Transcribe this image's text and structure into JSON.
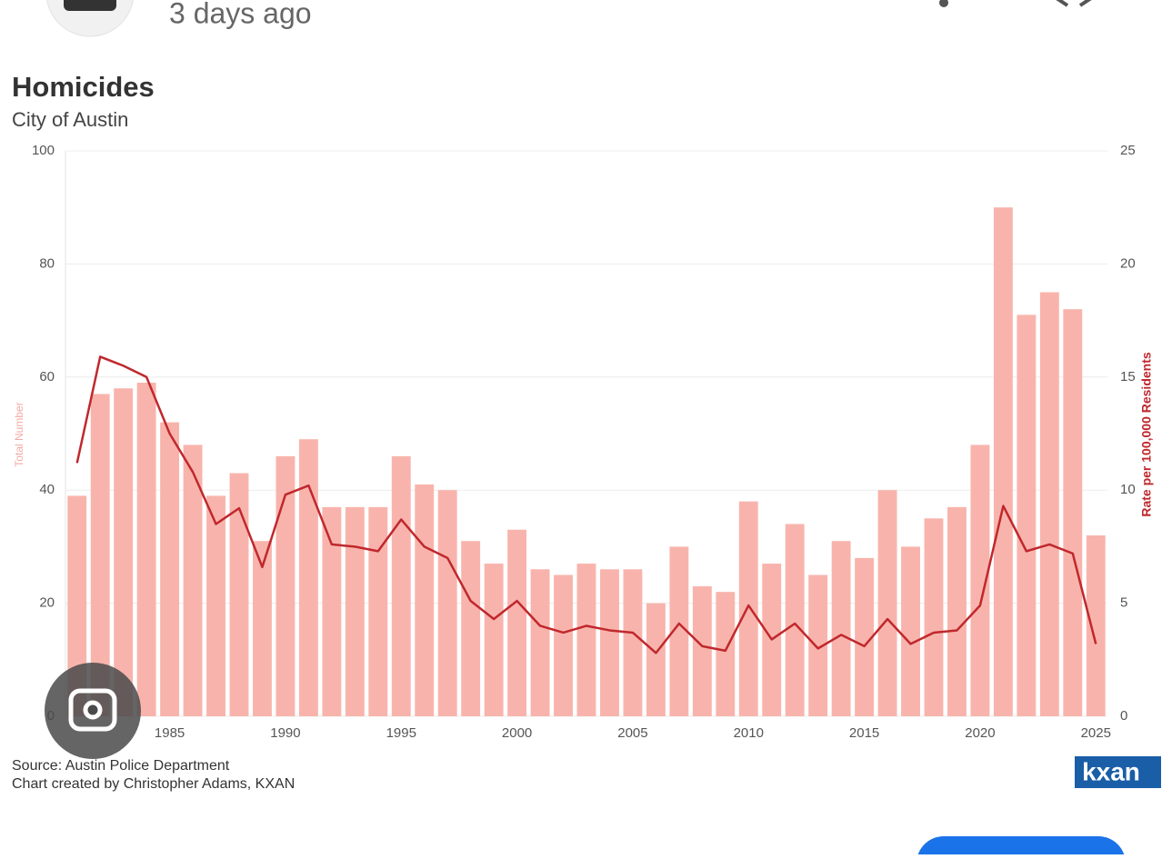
{
  "header": {
    "time": "3 days ago"
  },
  "chart_data": {
    "type": "bar-line",
    "title": "Homicides",
    "subtitle": "City of Austin",
    "ylabel": "Total Number",
    "y2label": "Rate per 100,000 Residents",
    "x": [
      1981,
      1982,
      1983,
      1984,
      1985,
      1986,
      1987,
      1988,
      1989,
      1990,
      1991,
      1992,
      1993,
      1994,
      1995,
      1996,
      1997,
      1998,
      1999,
      2000,
      2001,
      2002,
      2003,
      2004,
      2005,
      2006,
      2007,
      2008,
      2009,
      2010,
      2011,
      2012,
      2013,
      2014,
      2015,
      2016,
      2017,
      2018,
      2019,
      2020,
      2021,
      2022,
      2023,
      2024,
      2025
    ],
    "series": [
      {
        "type": "bar",
        "color": "#f8b4ac",
        "values": [
          39,
          57,
          58,
          59,
          52,
          48,
          39,
          43,
          31,
          46,
          49,
          37,
          37,
          37,
          46,
          41,
          40,
          31,
          27,
          33,
          26,
          25,
          27,
          26,
          26,
          20,
          30,
          23,
          22,
          38,
          27,
          34,
          25,
          31,
          28,
          40,
          30,
          35,
          37,
          48,
          90,
          71,
          75,
          72,
          32
        ]
      },
      {
        "type": "line",
        "axis": "y2",
        "color": "#c0282d",
        "values": [
          11.2,
          15.9,
          15.5,
          15.0,
          12.5,
          10.8,
          8.5,
          9.2,
          6.6,
          9.8,
          10.2,
          7.6,
          7.5,
          7.3,
          8.7,
          7.5,
          7.0,
          5.1,
          4.3,
          5.1,
          4.0,
          3.7,
          4.0,
          3.8,
          3.7,
          2.8,
          4.1,
          3.1,
          2.9,
          4.9,
          3.4,
          4.1,
          3.0,
          3.6,
          3.1,
          4.3,
          3.2,
          3.7,
          3.8,
          4.9,
          9.3,
          7.3,
          7.6,
          7.2,
          3.2
        ]
      }
    ],
    "xlim": [
      1980.5,
      2025.5
    ],
    "xticks": [
      1985,
      1990,
      1995,
      2000,
      2005,
      2010,
      2015,
      2020,
      2025
    ],
    "ylim": [
      0,
      100
    ],
    "yticks": [
      0,
      20,
      40,
      60,
      80,
      100
    ],
    "y2lim": [
      0,
      25
    ],
    "y2ticks": [
      0,
      5,
      10,
      15,
      20,
      25
    ],
    "grid": true
  },
  "footer": {
    "source": "Source: Austin Police Department",
    "credit": "Chart created by Christopher Adams, KXAN",
    "logo": "kxan"
  }
}
